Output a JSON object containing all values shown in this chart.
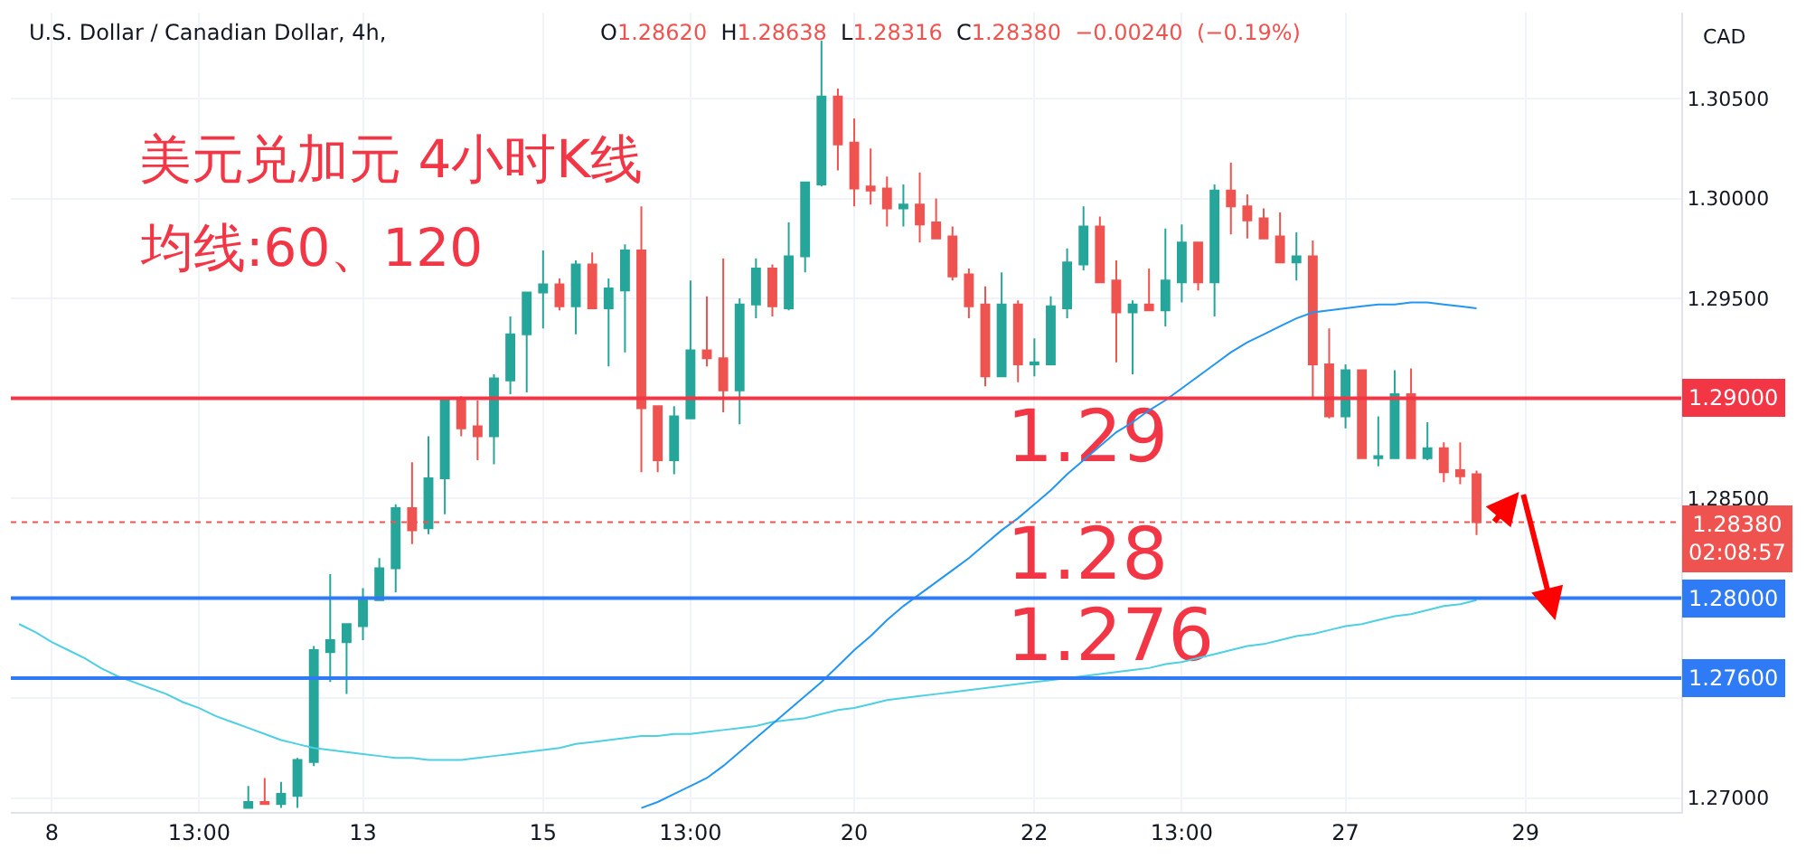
{
  "chart_data": {
    "type": "candlestick",
    "title": "美元兑加元 4小时K线",
    "subtitle": "均线:60、120",
    "ylabel": "CAD",
    "categories": [
      null,
      null,
      "8",
      null,
      null,
      null,
      null,
      null,
      null,
      null,
      null,
      "13:00",
      null,
      null,
      null,
      null,
      null,
      null,
      null,
      null,
      null,
      "13",
      null,
      null,
      null,
      null,
      null,
      null,
      null,
      null,
      null,
      null,
      "15",
      null,
      null,
      null,
      null,
      null,
      null,
      null,
      null,
      "13:00",
      null,
      null,
      null,
      null,
      null,
      null,
      null,
      null,
      null,
      "20",
      null,
      null,
      null,
      null,
      null,
      null,
      null,
      null,
      null,
      null,
      "22",
      null,
      null,
      null,
      null,
      null,
      null,
      null,
      null,
      "13:00",
      null,
      null,
      null,
      null,
      null,
      null,
      null,
      null,
      null,
      "27",
      null,
      null,
      null,
      null,
      null,
      null,
      null,
      null,
      null,
      null,
      "29",
      null,
      null,
      null,
      null,
      null,
      null,
      null,
      null,
      null
    ],
    "ohlc": [
      null,
      null,
      null,
      null,
      null,
      null,
      null,
      null,
      null,
      null,
      null,
      null,
      null,
      null,
      [
        1.2695,
        1.2706,
        1.2695,
        1.2698
      ],
      [
        1.2698,
        1.271,
        1.2697,
        1.2697
      ],
      [
        1.2697,
        1.2708,
        1.2695,
        1.2702
      ],
      [
        1.2701,
        1.272,
        1.2695,
        1.2719
      ],
      [
        1.2718,
        1.2776,
        1.2716,
        1.2774
      ],
      [
        1.2773,
        1.2812,
        1.2758,
        1.2779
      ],
      [
        1.2778,
        1.2787,
        1.2752,
        1.2787
      ],
      [
        1.2786,
        1.2805,
        1.2779,
        1.28
      ],
      [
        1.2799,
        1.282,
        1.2799,
        1.2815
      ],
      [
        1.2815,
        1.2847,
        1.2803,
        1.2845
      ],
      [
        1.2845,
        1.2868,
        1.2827,
        1.2834
      ],
      [
        1.2835,
        1.2881,
        1.2832,
        1.286
      ],
      [
        1.286,
        1.29,
        1.2842,
        1.29
      ],
      [
        1.29,
        1.2901,
        1.2881,
        1.2885
      ],
      [
        1.2886,
        1.2899,
        1.2869,
        1.2881
      ],
      [
        1.2881,
        1.2912,
        1.2867,
        1.291
      ],
      [
        1.2909,
        1.2941,
        1.2902,
        1.2932
      ],
      [
        1.2932,
        1.2953,
        1.2903,
        1.2953
      ],
      [
        1.2953,
        1.2974,
        1.2935,
        1.2957
      ],
      [
        1.2957,
        1.296,
        1.2944,
        1.2946
      ],
      [
        1.2946,
        1.2969,
        1.2932,
        1.2967
      ],
      [
        1.2967,
        1.2973,
        1.2945,
        1.2945
      ],
      [
        1.2945,
        1.296,
        1.2916,
        1.2955
      ],
      [
        1.2954,
        1.2977,
        1.2923,
        1.2974
      ],
      [
        1.2974,
        1.2996,
        1.2863,
        1.2895
      ],
      [
        1.2896,
        1.2896,
        1.2863,
        1.2869
      ],
      [
        1.2869,
        1.2896,
        1.2862,
        1.2891
      ],
      [
        1.289,
        1.2959,
        1.289,
        1.2924
      ],
      [
        1.2924,
        1.2951,
        1.2916,
        1.292
      ],
      [
        1.292,
        1.297,
        1.2893,
        1.2904
      ],
      [
        1.2904,
        1.295,
        1.2887,
        1.2947
      ],
      [
        1.2947,
        1.297,
        1.294,
        1.2965
      ],
      [
        1.2965,
        1.2967,
        1.2941,
        1.2946
      ],
      [
        1.2945,
        1.2988,
        1.2944,
        1.2971
      ],
      [
        1.2971,
        1.3008,
        1.2963,
        1.3008
      ],
      [
        1.3007,
        1.3079,
        1.3006,
        1.3051
      ],
      [
        1.3051,
        1.3055,
        1.3014,
        1.3027
      ],
      [
        1.3028,
        1.304,
        1.2996,
        1.3005
      ],
      [
        1.3006,
        1.3025,
        1.2997,
        1.3004
      ],
      [
        1.3005,
        1.3011,
        1.2986,
        1.2995
      ],
      [
        1.2995,
        1.3007,
        1.2986,
        1.2997
      ],
      [
        1.2997,
        1.3013,
        1.2978,
        1.2987
      ],
      [
        1.2988,
        1.3,
        1.298,
        1.298
      ],
      [
        1.2981,
        1.2986,
        1.2959,
        1.2961
      ],
      [
        1.2962,
        1.2965,
        1.294,
        1.2946
      ],
      [
        1.2947,
        1.2956,
        1.2906,
        1.2911
      ],
      [
        1.2911,
        1.2963,
        1.2911,
        1.2947
      ],
      [
        1.2947,
        1.2949,
        1.2908,
        1.2917
      ],
      [
        1.2917,
        1.293,
        1.2911,
        1.2918
      ],
      [
        1.2917,
        1.2951,
        1.2917,
        1.2946
      ],
      [
        1.2945,
        1.2975,
        1.294,
        1.2968
      ],
      [
        1.2967,
        1.2996,
        1.2964,
        1.2986
      ],
      [
        1.2986,
        1.2991,
        1.2958,
        1.2958
      ],
      [
        1.2959,
        1.2969,
        1.2918,
        1.2943
      ],
      [
        1.2943,
        1.2949,
        1.2912,
        1.2947
      ],
      [
        1.2947,
        1.2965,
        1.2944,
        1.2944
      ],
      [
        1.2944,
        1.2985,
        1.2936,
        1.2959
      ],
      [
        1.2958,
        1.2987,
        1.2948,
        1.2978
      ],
      [
        1.2978,
        1.2978,
        1.2954,
        1.2958
      ],
      [
        1.2958,
        1.3007,
        1.2941,
        1.3004
      ],
      [
        1.3004,
        1.3018,
        1.2982,
        1.2996
      ],
      [
        1.2996,
        1.3002,
        1.298,
        1.2989
      ],
      [
        1.299,
        1.2995,
        1.298,
        1.298
      ],
      [
        1.2981,
        1.2993,
        1.2968,
        1.2968
      ],
      [
        1.2968,
        1.2983,
        1.2959,
        1.2971
      ],
      [
        1.2971,
        1.2979,
        1.29,
        1.2917
      ],
      [
        1.2917,
        1.2935,
        1.289,
        1.2891
      ],
      [
        1.2891,
        1.2917,
        1.2885,
        1.2914
      ],
      [
        1.2914,
        1.2914,
        1.287,
        1.287
      ],
      [
        1.287,
        1.2891,
        1.2866,
        1.2871
      ],
      [
        1.287,
        1.2914,
        1.287,
        1.2902
      ],
      [
        1.2902,
        1.2915,
        1.287,
        1.287
      ],
      [
        1.287,
        1.2888,
        1.2869,
        1.2875
      ],
      [
        1.2875,
        1.2878,
        1.2858,
        1.2863
      ],
      [
        1.2864,
        1.2878,
        1.2857,
        1.2861
      ],
      [
        1.2862,
        1.28638,
        1.28316,
        1.2838
      ],
      null,
      null,
      null,
      null,
      null,
      null,
      null,
      null,
      null,
      null,
      null,
      null
    ],
    "colors": [
      null,
      null,
      null,
      null,
      null,
      null,
      null,
      null,
      null,
      null,
      null,
      null,
      null,
      null,
      "#26a69a",
      "#ef5350",
      "#26a69a",
      "#26a69a",
      "#26a69a",
      "#26a69a",
      "#26a69a",
      "#26a69a",
      "#26a69a",
      "#26a69a",
      "#ef5350",
      "#26a69a",
      "#26a69a",
      "#ef5350",
      "#ef5350",
      "#26a69a",
      "#26a69a",
      "#26a69a",
      "#26a69a",
      "#ef5350",
      "#26a69a",
      "#ef5350",
      "#26a69a",
      "#26a69a",
      "#ef5350",
      "#ef5350",
      "#26a69a",
      "#26a69a",
      "#ef5350",
      "#ef5350",
      "#26a69a",
      "#26a69a",
      "#ef5350",
      "#26a69a",
      "#26a69a",
      "#26a69a",
      "#ef5350",
      "#ef5350",
      "#ef5350",
      "#ef5350",
      "#26a69a",
      "#ef5350",
      "#ef5350",
      "#ef5350",
      "#ef5350",
      "#ef5350",
      "#26a69a",
      "#ef5350",
      "#26a69a",
      "#26a69a",
      "#26a69a",
      "#26a69a",
      "#ef5350",
      "#ef5350",
      "#26a69a",
      "#ef5350",
      "#26a69a",
      "#26a69a",
      "#ef5350",
      "#26a69a",
      "#ef5350",
      "#ef5350",
      "#ef5350",
      "#ef5350",
      "#26a69a",
      "#ef5350",
      "#ef5350",
      "#26a69a",
      "#ef5350",
      "#26a69a",
      "#26a69a",
      "#ef5350",
      "#26a69a",
      "#ef5350",
      "#ef5350",
      "#ef5350",
      null,
      null,
      null,
      null,
      null,
      null,
      null,
      null,
      null,
      null,
      null,
      null
    ],
    "series": [
      {
        "type": "line",
        "color": "#4dd0e1",
        "values": [
          1.2787,
          1.2783,
          1.2778,
          1.2774,
          1.277,
          1.2765,
          1.2761,
          1.2758,
          1.2755,
          1.2752,
          1.2748,
          1.2745,
          1.2741,
          1.2738,
          1.2735,
          1.2732,
          1.2729,
          1.2727,
          1.2725,
          1.2724,
          1.2723,
          1.2722,
          1.2721,
          1.272,
          1.272,
          1.2719,
          1.2719,
          1.2719,
          1.272,
          1.2721,
          1.2722,
          1.2723,
          1.2724,
          1.2725,
          1.2727,
          1.2728,
          1.2729,
          1.273,
          1.2731,
          1.2731,
          1.2732,
          1.2732,
          1.2733,
          1.2734,
          1.2735,
          1.2736,
          1.2738,
          1.2739,
          1.274,
          1.2742,
          1.2744,
          1.2745,
          1.2747,
          1.2749,
          1.275,
          1.2751,
          1.2752,
          1.2753,
          1.2754,
          1.2755,
          1.2756,
          1.2757,
          1.2758,
          1.2759,
          1.276,
          1.2761,
          1.2762,
          1.2763,
          1.2764,
          1.2765,
          1.2767,
          1.2768,
          1.277,
          1.2772,
          1.2774,
          1.2776,
          1.2777,
          1.2779,
          1.2781,
          1.2782,
          1.2784,
          1.2786,
          1.2787,
          1.2789,
          1.2791,
          1.2792,
          1.2794,
          1.2796,
          1.2797,
          1.2799,
          null,
          null,
          null,
          null,
          null,
          null,
          null,
          null,
          null,
          null,
          null,
          null
        ]
      },
      {
        "type": "line",
        "color": "#2196f3",
        "values": [
          null,
          null,
          null,
          null,
          null,
          null,
          null,
          null,
          null,
          null,
          null,
          null,
          null,
          null,
          null,
          null,
          null,
          null,
          null,
          null,
          null,
          null,
          null,
          null,
          null,
          null,
          null,
          null,
          null,
          null,
          null,
          null,
          null,
          null,
          null,
          null,
          null,
          null,
          1.2695,
          1.2698,
          1.2702,
          1.2706,
          1.271,
          1.2716,
          1.2723,
          1.273,
          1.2737,
          1.2744,
          1.2751,
          1.2758,
          1.2766,
          1.2774,
          1.2781,
          1.2789,
          1.2796,
          1.2802,
          1.2808,
          1.2814,
          1.282,
          1.2827,
          1.2834,
          1.284,
          1.2847,
          1.2854,
          1.2862,
          1.2869,
          1.2876,
          1.2883,
          1.2888,
          1.2894,
          1.2899,
          1.2905,
          1.2911,
          1.2917,
          1.2923,
          1.2928,
          1.2932,
          1.2936,
          1.294,
          1.2943,
          1.2944,
          1.2945,
          1.2946,
          1.2947,
          1.2947,
          1.2948,
          1.2948,
          1.2947,
          1.2946,
          1.2945,
          null,
          null,
          null,
          null,
          null,
          null,
          null,
          null,
          null,
          null,
          null,
          null
        ]
      }
    ],
    "ylim": [
      1.2693,
      1.3093
    ],
    "yticks": [
      {
        "value": 1.27,
        "label": "1.27000"
      },
      {
        "value": 1.275,
        "label": null
      },
      {
        "value": 1.28,
        "label": null
      },
      {
        "value": 1.285,
        "label": "1.28500"
      },
      {
        "value": 1.29,
        "label": null
      },
      {
        "value": 1.295,
        "label": "1.29500"
      },
      {
        "value": 1.3,
        "label": "1.30000"
      },
      {
        "value": 1.305,
        "label": "1.30500"
      }
    ],
    "grid": true,
    "ref_lines": [
      {
        "axis": "y",
        "value": 1.29,
        "label": "1.29000",
        "color": "#f23645"
      },
      {
        "axis": "y",
        "value": 1.28,
        "label": "1.28000",
        "color": "#2f7bf5"
      },
      {
        "axis": "y",
        "value": 1.276,
        "label": "1.27600",
        "color": "#2f7bf5"
      },
      {
        "axis": "y",
        "value": 1.2838,
        "label": "1.28380\n02:08:57",
        "color": "#ef5350",
        "line_style": "dotted"
      }
    ],
    "annotations": [
      "U.S. Dollar / Canadian Dollar, 4h,",
      "O1.28620 H1.28638 L1.28316 C1.28380 −0.00240 (−0.19%)",
      "1.29",
      "1.28",
      "1.276"
    ]
  }
}
